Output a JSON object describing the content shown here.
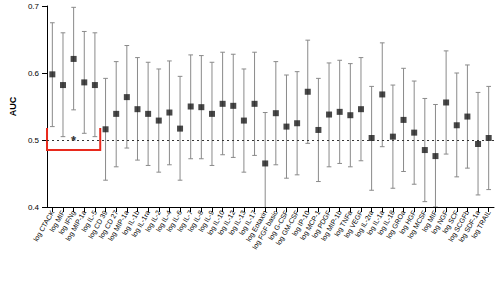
{
  "chart_data": {
    "type": "scatter",
    "y_label": "AUC",
    "categories": [
      "log CTACK",
      "log MIF",
      "log IFNg",
      "log MIP-1a",
      "log IL-5",
      "log CD 39",
      "log CD 27",
      "log MIP-1a",
      "log IL-1b",
      "log IL-1ra",
      "log IL-2",
      "log IL-4",
      "log IL-6",
      "log IL-7",
      "log IL-8",
      "log IL-9",
      "log IL-10",
      "log IL-12",
      "log IL-13",
      "log IL-17",
      "log Eotaxin",
      "log FGF basic",
      "log G-CSF",
      "log GM-CSF",
      "log IP-10",
      "log MCP-1",
      "log PDGF",
      "log MIP-1b",
      "log TNFa",
      "log VEGF",
      "log IL-2ra",
      "log IL-1a",
      "log IL-18",
      "log GROa",
      "log HGF",
      "log MCSF",
      "log MIF",
      "log NGF",
      "log SCF",
      "log SCGFb",
      "log SDF-1a",
      "log TRAIL"
    ],
    "values": [
      0.598,
      0.582,
      0.621,
      0.586,
      0.582,
      0.516,
      0.539,
      0.564,
      0.546,
      0.539,
      0.529,
      0.541,
      0.517,
      0.55,
      0.549,
      0.539,
      0.554,
      0.551,
      0.529,
      0.554,
      0.465,
      0.54,
      0.52,
      0.525,
      0.572,
      0.515,
      0.538,
      0.542,
      0.537,
      0.546,
      0.503,
      0.568,
      0.505,
      0.53,
      0.511,
      0.485,
      0.476,
      0.556,
      0.522,
      0.535,
      0.494,
      0.503
    ],
    "ci_low": [
      0.52,
      0.505,
      0.545,
      0.51,
      0.505,
      0.44,
      0.46,
      0.488,
      0.47,
      0.462,
      0.452,
      0.463,
      0.44,
      0.472,
      0.472,
      0.462,
      0.478,
      0.474,
      0.452,
      0.477,
      0.395,
      0.463,
      0.443,
      0.448,
      0.495,
      0.438,
      0.46,
      0.465,
      0.46,
      0.469,
      0.425,
      0.49,
      0.428,
      0.453,
      0.434,
      0.408,
      0.4,
      0.479,
      0.445,
      0.458,
      0.418,
      0.426
    ],
    "ci_high": [
      0.675,
      0.66,
      0.698,
      0.662,
      0.66,
      0.592,
      0.617,
      0.641,
      0.623,
      0.616,
      0.606,
      0.618,
      0.595,
      0.627,
      0.626,
      0.616,
      0.631,
      0.628,
      0.606,
      0.631,
      0.541,
      0.617,
      0.597,
      0.602,
      0.649,
      0.592,
      0.615,
      0.619,
      0.614,
      0.623,
      0.58,
      0.645,
      0.582,
      0.607,
      0.588,
      0.562,
      0.553,
      0.633,
      0.6,
      0.612,
      0.571,
      0.58
    ],
    "color": "#1a1a1a",
    "marker": "square",
    "ylim": [
      0.4,
      0.7
    ],
    "yticks": [
      0.4,
      0.5,
      0.6,
      0.7
    ],
    "grid": false,
    "hline": 0.5,
    "annotations": [
      {
        "text": "*",
        "from": "log CTACK",
        "to": "log IL-5",
        "y": 0.485,
        "color": "#e8291c"
      }
    ]
  }
}
